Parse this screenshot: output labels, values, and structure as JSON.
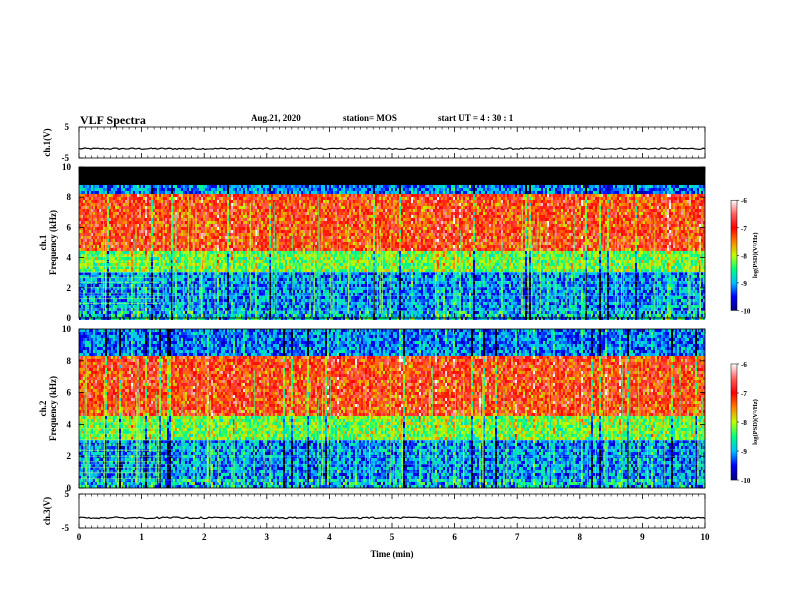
{
  "header": {
    "title": "VLF Spectra",
    "date": "Aug.21, 2020",
    "station": "station= MOS",
    "start_ut": "start  UT =   4 : 30 : 1"
  },
  "chart_data": [
    {
      "type": "line",
      "panel": "ch1-waveform",
      "ylabel": "ch.1(V)",
      "ylim": [
        -5,
        5
      ],
      "yticks": [
        5,
        -5
      ],
      "xlim": [
        0,
        10
      ],
      "series": [
        {
          "values_note_level": -2
        }
      ]
    },
    {
      "type": "heatmap",
      "panel": "ch1-spectrogram",
      "ylabel": "ch.1\nFrequency (kHz)",
      "ylabel_lines": [
        "ch.1",
        "Frequency (kHz)"
      ],
      "ylim": [
        0,
        10
      ],
      "yticks": [
        0,
        2,
        4,
        6,
        8,
        10
      ],
      "xlim": [
        0,
        10
      ],
      "colorbar": {
        "label": "log(PSD)(V²/Hz)",
        "ticks": [
          -6,
          -7,
          -8,
          -9,
          -10
        ],
        "range": [
          -10,
          -6
        ]
      }
    },
    {
      "type": "heatmap",
      "panel": "ch2-spectrogram",
      "ylabel_lines": [
        "ch.2",
        "Frequency (kHz)"
      ],
      "ylim": [
        0,
        10
      ],
      "yticks": [
        0,
        2,
        4,
        6,
        8,
        10
      ],
      "xlim": [
        0,
        10
      ],
      "colorbar": {
        "label": "log(PSD)(V²/Hz)",
        "ticks": [
          -6,
          -7,
          -8,
          -9,
          -10
        ],
        "range": [
          -10,
          -6
        ]
      }
    },
    {
      "type": "line",
      "panel": "ch3-waveform",
      "ylabel": "ch.3(V)",
      "ylim": [
        -5,
        5
      ],
      "yticks": [
        5,
        -5
      ],
      "xlim": [
        0,
        10
      ],
      "series": [
        {
          "values_note_level": -2
        }
      ]
    }
  ],
  "xaxis": {
    "label": "Time (min)",
    "ticks": [
      0,
      1,
      2,
      3,
      4,
      5,
      6,
      7,
      8,
      9,
      10
    ],
    "range": [
      0,
      10
    ]
  },
  "colors": {
    "ramp": [
      "#000080",
      "#0000ff",
      "#00c0ff",
      "#00ff80",
      "#c0ff00",
      "#ff8000",
      "#ff0000",
      "#ff6060",
      "#ffffff"
    ]
  }
}
